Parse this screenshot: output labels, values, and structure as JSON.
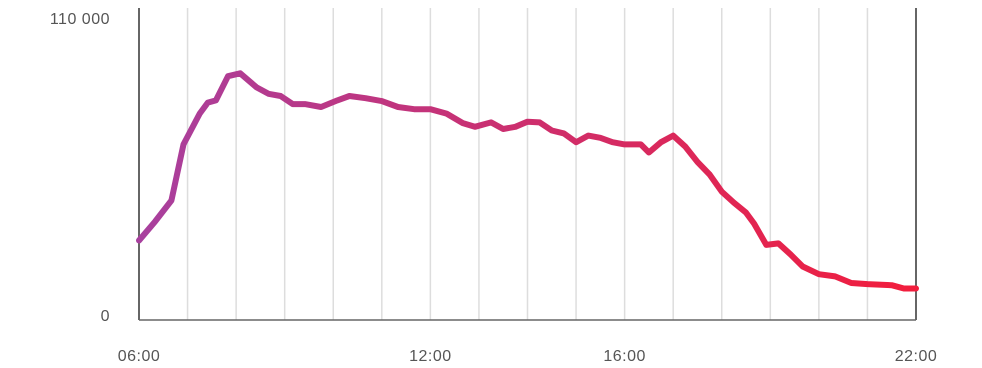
{
  "chart_data": {
    "type": "line",
    "title": "",
    "xlabel": "",
    "ylabel": "",
    "ylim": [
      0,
      110000
    ],
    "xlim": [
      "06:00",
      "22:00"
    ],
    "y_tick_labels": [
      {
        "value": 0,
        "label": "0"
      },
      {
        "value": 110000,
        "label": "110 000"
      }
    ],
    "x_tick_labels": [
      {
        "value": "06:00",
        "label": "06:00"
      },
      {
        "value": "12:00",
        "label": "12:00"
      },
      {
        "value": "16:00",
        "label": "16:00"
      },
      {
        "value": "22:00",
        "label": "22:00"
      }
    ],
    "grid": true,
    "gradient_colors": [
      "#a8409e",
      "#f21d3c"
    ],
    "axis_color": "#666666",
    "grid_color": "#dddddd",
    "series": [
      {
        "points": [
          [
            "06:00",
            19300
          ],
          [
            "06:20",
            28000
          ],
          [
            "06:40",
            37500
          ],
          [
            "06:55",
            63000
          ],
          [
            "07:15",
            77000
          ],
          [
            "07:25",
            82000
          ],
          [
            "07:35",
            83000
          ],
          [
            "07:50",
            94000
          ],
          [
            "08:05",
            95300
          ],
          [
            "08:25",
            89000
          ],
          [
            "08:40",
            86000
          ],
          [
            "08:55",
            85000
          ],
          [
            "09:10",
            81300
          ],
          [
            "09:25",
            81300
          ],
          [
            "09:45",
            80000
          ],
          [
            "10:05",
            83000
          ],
          [
            "10:20",
            85000
          ],
          [
            "10:40",
            84000
          ],
          [
            "11:00",
            82700
          ],
          [
            "11:20",
            80000
          ],
          [
            "11:40",
            79000
          ],
          [
            "12:00",
            79000
          ],
          [
            "12:20",
            77000
          ],
          [
            "12:40",
            72700
          ],
          [
            "12:55",
            71000
          ],
          [
            "13:15",
            73000
          ],
          [
            "13:30",
            70000
          ],
          [
            "13:45",
            71000
          ],
          [
            "14:00",
            73300
          ],
          [
            "14:15",
            73000
          ],
          [
            "14:30",
            69300
          ],
          [
            "14:45",
            68000
          ],
          [
            "15:00",
            64000
          ],
          [
            "15:15",
            67000
          ],
          [
            "15:30",
            66000
          ],
          [
            "15:45",
            64000
          ],
          [
            "16:00",
            63000
          ],
          [
            "16:20",
            63000
          ],
          [
            "16:30",
            59300
          ],
          [
            "16:45",
            64000
          ],
          [
            "17:00",
            67000
          ],
          [
            "17:15",
            62000
          ],
          [
            "17:30",
            55000
          ],
          [
            "17:45",
            49300
          ],
          [
            "18:00",
            41500
          ],
          [
            "18:15",
            36500
          ],
          [
            "18:30",
            32000
          ],
          [
            "18:40",
            27000
          ],
          [
            "18:55",
            17300
          ],
          [
            "19:10",
            18000
          ],
          [
            "19:25",
            13000
          ],
          [
            "19:40",
            7500
          ],
          [
            "20:00",
            4000
          ],
          [
            "20:20",
            3000
          ],
          [
            "20:40",
            0
          ],
          [
            "21:00",
            -500
          ],
          [
            "21:30",
            -1000
          ],
          [
            "21:45",
            -2500
          ],
          [
            "22:00",
            -2500
          ]
        ]
      }
    ]
  }
}
